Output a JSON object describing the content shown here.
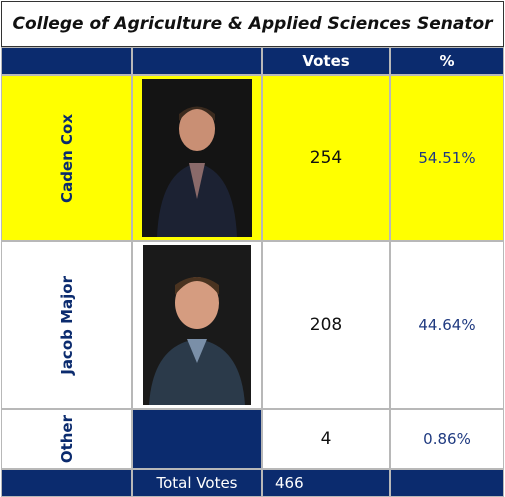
{
  "header": {
    "title": "College of Agriculture & Applied Sciences Senator"
  },
  "table": {
    "columns": [
      "Votes",
      "%"
    ],
    "rows": [
      {
        "name": "Caden Cox",
        "votes": 254,
        "percent": "54.51%"
      },
      {
        "name": "Jacob Major",
        "votes": 208,
        "percent": "44.64%"
      },
      {
        "name": "Other",
        "votes": 4,
        "percent": "0.86%"
      }
    ],
    "total": {
      "label": "Total Votes",
      "votes": 466
    }
  }
}
